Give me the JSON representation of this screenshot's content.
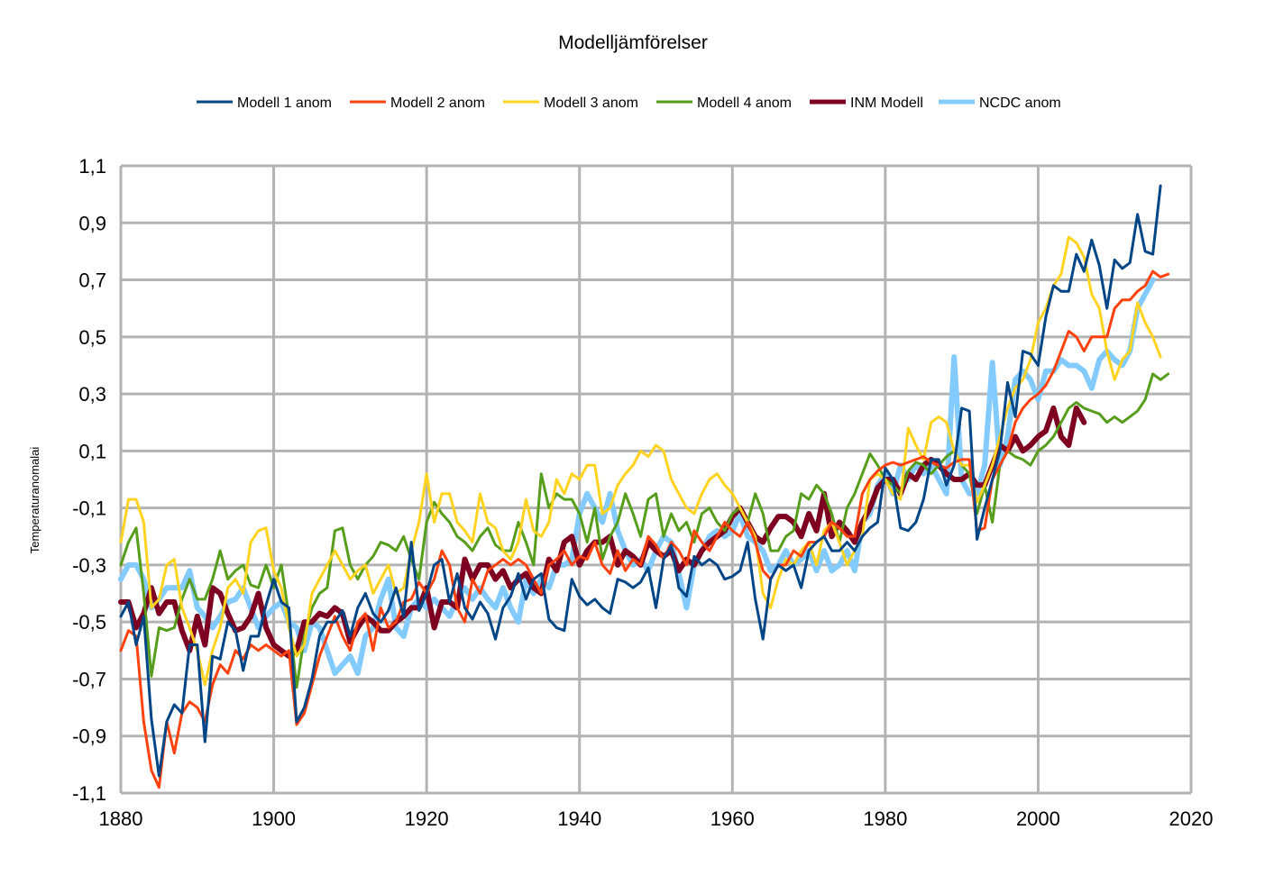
{
  "chart_data": {
    "type": "line",
    "title": "Modelljämförelser",
    "xlabel": "",
    "ylabel": "Temperaturanomalai",
    "xlim": [
      1880,
      2020
    ],
    "ylim": [
      -1.1,
      1.1
    ],
    "x_ticks": [
      1880,
      1900,
      1920,
      1940,
      1960,
      1980,
      2000,
      2020
    ],
    "y_ticks": [
      1.1,
      0.9,
      0.7,
      0.5,
      0.3,
      0.1,
      -0.1,
      -0.3,
      -0.5,
      -0.7,
      -0.9,
      -1.1
    ],
    "x_tick_labels": [
      "1880",
      "1900",
      "1920",
      "1940",
      "1960",
      "1980",
      "2000",
      "2020"
    ],
    "y_tick_labels": [
      "1,1",
      "0,9",
      "0,7",
      "0,5",
      "0,3",
      "0,1",
      "-0,1",
      "-0,3",
      "-0,5",
      "-0,7",
      "-0,9",
      "-1,1"
    ],
    "grid": true,
    "legend_position": "top",
    "series": [
      {
        "name": "Modell 1 anom",
        "color": "#004586",
        "width": 3,
        "x_start": 1880,
        "values": [
          -0.48,
          -0.43,
          -0.58,
          -0.48,
          -0.84,
          -1.04,
          -0.85,
          -0.79,
          -0.82,
          -0.58,
          -0.58,
          -0.92,
          -0.62,
          -0.63,
          -0.5,
          -0.53,
          -0.67,
          -0.55,
          -0.55,
          -0.44,
          -0.35,
          -0.43,
          -0.45,
          -0.85,
          -0.8,
          -0.7,
          -0.55,
          -0.5,
          -0.5,
          -0.46,
          -0.55,
          -0.45,
          -0.4,
          -0.47,
          -0.5,
          -0.46,
          -0.38,
          -0.48,
          -0.22,
          -0.46,
          -0.4,
          -0.3,
          -0.28,
          -0.43,
          -0.33,
          -0.45,
          -0.49,
          -0.43,
          -0.47,
          -0.56,
          -0.45,
          -0.41,
          -0.33,
          -0.42,
          -0.35,
          -0.33,
          -0.49,
          -0.52,
          -0.53,
          -0.35,
          -0.41,
          -0.44,
          -0.42,
          -0.45,
          -0.47,
          -0.35,
          -0.36,
          -0.38,
          -0.36,
          -0.31,
          -0.45,
          -0.28,
          -0.23,
          -0.38,
          -0.41,
          -0.27,
          -0.3,
          -0.28,
          -0.3,
          -0.35,
          -0.34,
          -0.32,
          -0.22,
          -0.42,
          -0.56,
          -0.35,
          -0.3,
          -0.32,
          -0.3,
          -0.38,
          -0.25,
          -0.22,
          -0.2,
          -0.25,
          -0.25,
          -0.22,
          -0.25,
          -0.2,
          -0.17,
          -0.15,
          0.04,
          0.0,
          -0.17,
          -0.18,
          -0.15,
          -0.07,
          0.07,
          0.07,
          -0.02,
          0.05,
          0.25,
          0.24,
          -0.21,
          -0.1,
          0.0,
          0.1,
          0.34,
          0.22,
          0.45,
          0.44,
          0.4,
          0.57,
          0.68,
          0.66,
          0.66,
          0.79,
          0.73,
          0.84,
          0.75,
          0.6,
          0.77,
          0.74,
          0.76,
          0.93,
          0.8,
          0.79,
          1.03
        ]
      },
      {
        "name": "Modell 2 anom",
        "color": "#ff420e",
        "width": 3,
        "x_start": 1880,
        "values": [
          -0.6,
          -0.53,
          -0.55,
          -0.85,
          -1.02,
          -1.08,
          -0.85,
          -0.96,
          -0.82,
          -0.78,
          -0.8,
          -0.85,
          -0.72,
          -0.65,
          -0.68,
          -0.6,
          -0.63,
          -0.58,
          -0.6,
          -0.58,
          -0.6,
          -0.62,
          -0.6,
          -0.86,
          -0.82,
          -0.72,
          -0.62,
          -0.55,
          -0.48,
          -0.55,
          -0.6,
          -0.5,
          -0.47,
          -0.6,
          -0.45,
          -0.52,
          -0.5,
          -0.43,
          -0.42,
          -0.36,
          -0.4,
          -0.35,
          -0.25,
          -0.3,
          -0.45,
          -0.5,
          -0.35,
          -0.4,
          -0.32,
          -0.3,
          -0.28,
          -0.3,
          -0.28,
          -0.3,
          -0.35,
          -0.4,
          -0.3,
          -0.28,
          -0.25,
          -0.3,
          -0.27,
          -0.28,
          -0.22,
          -0.3,
          -0.33,
          -0.25,
          -0.32,
          -0.28,
          -0.3,
          -0.2,
          -0.23,
          -0.28,
          -0.22,
          -0.25,
          -0.3,
          -0.18,
          -0.22,
          -0.25,
          -0.2,
          -0.15,
          -0.18,
          -0.2,
          -0.15,
          -0.22,
          -0.32,
          -0.35,
          -0.3,
          -0.3,
          -0.25,
          -0.27,
          -0.22,
          -0.22,
          -0.2,
          -0.15,
          -0.17,
          -0.2,
          -0.2,
          -0.05,
          0.0,
          0.03,
          0.05,
          0.06,
          0.05,
          0.06,
          0.07,
          0.08,
          0.06,
          0.05,
          0.04,
          0.06,
          0.07,
          0.07,
          -0.18,
          -0.17,
          0.0,
          0.05,
          0.1,
          0.2,
          0.25,
          0.28,
          0.3,
          0.33,
          0.38,
          0.45,
          0.52,
          0.5,
          0.45,
          0.5,
          0.5,
          0.5,
          0.6,
          0.63,
          0.63,
          0.66,
          0.68,
          0.73,
          0.71,
          0.72
        ]
      },
      {
        "name": "Modell 3 anom",
        "color": "#ffd320",
        "width": 3,
        "x_start": 1880,
        "values": [
          -0.22,
          -0.07,
          -0.07,
          -0.15,
          -0.45,
          -0.42,
          -0.3,
          -0.28,
          -0.45,
          -0.52,
          -0.6,
          -0.72,
          -0.6,
          -0.52,
          -0.38,
          -0.35,
          -0.4,
          -0.22,
          -0.18,
          -0.17,
          -0.32,
          -0.38,
          -0.52,
          -0.62,
          -0.58,
          -0.4,
          -0.35,
          -0.3,
          -0.25,
          -0.3,
          -0.35,
          -0.32,
          -0.3,
          -0.4,
          -0.35,
          -0.3,
          -0.4,
          -0.38,
          -0.25,
          -0.15,
          0.02,
          -0.15,
          -0.05,
          -0.05,
          -0.15,
          -0.18,
          -0.22,
          -0.05,
          -0.15,
          -0.17,
          -0.25,
          -0.28,
          -0.22,
          -0.07,
          -0.18,
          -0.2,
          -0.15,
          0.0,
          -0.05,
          0.02,
          0.0,
          0.05,
          0.05,
          -0.12,
          -0.1,
          -0.02,
          0.02,
          0.05,
          0.1,
          0.08,
          0.12,
          0.1,
          0.0,
          -0.05,
          -0.1,
          -0.12,
          -0.05,
          0.0,
          0.02,
          -0.02,
          -0.05,
          -0.1,
          -0.15,
          -0.2,
          -0.4,
          -0.45,
          -0.35,
          -0.28,
          -0.3,
          -0.25,
          -0.22,
          -0.3,
          -0.18,
          -0.15,
          -0.22,
          -0.3,
          -0.25,
          -0.2,
          0.0,
          0.02,
          0.0,
          -0.05,
          -0.07,
          0.18,
          0.12,
          0.07,
          0.2,
          0.22,
          0.2,
          0.1,
          0.05,
          0.05,
          -0.08,
          -0.02,
          0.05,
          0.15,
          0.25,
          0.32,
          0.35,
          0.42,
          0.55,
          0.6,
          0.68,
          0.72,
          0.85,
          0.83,
          0.78,
          0.65,
          0.6,
          0.45,
          0.35,
          0.42,
          0.45,
          0.62,
          0.55,
          0.5,
          0.43
        ]
      },
      {
        "name": "Modell 4 anom",
        "color": "#579d1c",
        "width": 3,
        "x_start": 1880,
        "values": [
          -0.3,
          -0.22,
          -0.17,
          -0.4,
          -0.69,
          -0.52,
          -0.53,
          -0.52,
          -0.42,
          -0.35,
          -0.42,
          -0.42,
          -0.35,
          -0.25,
          -0.35,
          -0.32,
          -0.3,
          -0.37,
          -0.38,
          -0.3,
          -0.38,
          -0.3,
          -0.48,
          -0.73,
          -0.55,
          -0.45,
          -0.4,
          -0.38,
          -0.18,
          -0.17,
          -0.3,
          -0.35,
          -0.3,
          -0.27,
          -0.22,
          -0.23,
          -0.25,
          -0.2,
          -0.28,
          -0.35,
          -0.15,
          -0.08,
          -0.12,
          -0.15,
          -0.2,
          -0.22,
          -0.25,
          -0.2,
          -0.17,
          -0.23,
          -0.25,
          -0.25,
          -0.15,
          -0.22,
          -0.3,
          0.02,
          -0.1,
          -0.05,
          -0.07,
          -0.07,
          -0.12,
          -0.22,
          -0.1,
          -0.28,
          -0.2,
          -0.15,
          -0.05,
          -0.12,
          -0.2,
          -0.07,
          -0.05,
          -0.2,
          -0.12,
          -0.18,
          -0.15,
          -0.22,
          -0.12,
          -0.1,
          -0.15,
          -0.18,
          -0.12,
          -0.1,
          -0.15,
          -0.05,
          -0.12,
          -0.25,
          -0.25,
          -0.2,
          -0.18,
          -0.05,
          -0.07,
          -0.02,
          -0.05,
          -0.12,
          -0.22,
          -0.1,
          -0.05,
          0.02,
          0.09,
          0.05,
          0.0,
          -0.02,
          -0.05,
          0.03,
          0.06,
          0.05,
          0.02,
          0.05,
          0.08,
          0.1,
          0.05,
          0.02,
          -0.12,
          -0.02,
          -0.15,
          0.05,
          0.1,
          0.08,
          0.07,
          0.05,
          0.1,
          0.12,
          0.15,
          0.2,
          0.25,
          0.27,
          0.25,
          0.24,
          0.23,
          0.2,
          0.22,
          0.2,
          0.22,
          0.24,
          0.28,
          0.37,
          0.35,
          0.37
        ]
      },
      {
        "name": "INM Modell",
        "color": "#7e0021",
        "width": 6,
        "x_start": 1880,
        "values": [
          -0.43,
          -0.43,
          -0.52,
          -0.47,
          -0.38,
          -0.47,
          -0.43,
          -0.43,
          -0.53,
          -0.6,
          -0.48,
          -0.58,
          -0.38,
          -0.4,
          -0.47,
          -0.53,
          -0.52,
          -0.48,
          -0.4,
          -0.52,
          -0.58,
          -0.6,
          -0.62,
          -0.6,
          -0.5,
          -0.5,
          -0.47,
          -0.48,
          -0.45,
          -0.47,
          -0.57,
          -0.52,
          -0.48,
          -0.5,
          -0.53,
          -0.53,
          -0.5,
          -0.48,
          -0.45,
          -0.45,
          -0.38,
          -0.52,
          -0.43,
          -0.43,
          -0.45,
          -0.28,
          -0.35,
          -0.3,
          -0.3,
          -0.35,
          -0.32,
          -0.38,
          -0.35,
          -0.33,
          -0.38,
          -0.4,
          -0.28,
          -0.32,
          -0.22,
          -0.2,
          -0.3,
          -0.25,
          -0.22,
          -0.22,
          -0.2,
          -0.3,
          -0.25,
          -0.27,
          -0.3,
          -0.22,
          -0.25,
          -0.27,
          -0.25,
          -0.32,
          -0.28,
          -0.3,
          -0.25,
          -0.22,
          -0.2,
          -0.18,
          -0.13,
          -0.1,
          -0.15,
          -0.2,
          -0.22,
          -0.17,
          -0.13,
          -0.13,
          -0.15,
          -0.2,
          -0.12,
          -0.18,
          -0.05,
          -0.2,
          -0.15,
          -0.18,
          -0.22,
          -0.15,
          -0.1,
          -0.03,
          0.0,
          0.0,
          -0.05,
          0.02,
          0.0,
          0.05,
          0.07,
          0.05,
          0.02,
          0.0,
          0.0,
          0.02,
          -0.02,
          -0.02,
          0.05,
          0.12,
          0.1,
          0.15,
          0.1,
          0.12,
          0.15,
          0.17,
          0.25,
          0.15,
          0.12,
          0.25,
          0.2
        ]
      },
      {
        "name": "NCDC anom",
        "color": "#83caff",
        "width": 6,
        "x_start": 1880,
        "values": [
          -0.35,
          -0.3,
          -0.3,
          -0.35,
          -0.45,
          -0.42,
          -0.38,
          -0.38,
          -0.38,
          -0.32,
          -0.45,
          -0.48,
          -0.52,
          -0.48,
          -0.43,
          -0.42,
          -0.38,
          -0.45,
          -0.52,
          -0.48,
          -0.45,
          -0.43,
          -0.5,
          -0.52,
          -0.6,
          -0.5,
          -0.52,
          -0.6,
          -0.68,
          -0.65,
          -0.62,
          -0.68,
          -0.55,
          -0.52,
          -0.42,
          -0.35,
          -0.52,
          -0.55,
          -0.45,
          -0.42,
          -0.45,
          -0.42,
          -0.45,
          -0.48,
          -0.42,
          -0.38,
          -0.42,
          -0.38,
          -0.42,
          -0.45,
          -0.38,
          -0.45,
          -0.5,
          -0.35,
          -0.4,
          -0.35,
          -0.38,
          -0.3,
          -0.3,
          -0.28,
          -0.12,
          -0.05,
          -0.1,
          -0.15,
          -0.05,
          -0.18,
          -0.25,
          -0.3,
          -0.28,
          -0.32,
          -0.25,
          -0.2,
          -0.22,
          -0.33,
          -0.45,
          -0.3,
          -0.25,
          -0.2,
          -0.18,
          -0.2,
          -0.18,
          -0.12,
          -0.2,
          -0.22,
          -0.25,
          -0.32,
          -0.3,
          -0.25,
          -0.3,
          -0.28,
          -0.25,
          -0.32,
          -0.25,
          -0.32,
          -0.3,
          -0.25,
          -0.32,
          -0.15,
          -0.12,
          -0.02,
          0.02,
          -0.05,
          0.05,
          0.0,
          0.05,
          0.02,
          0.05,
          0.0,
          -0.05,
          0.43,
          0.0,
          -0.05,
          -0.05,
          0.05,
          0.41,
          0.05,
          0.15,
          0.35,
          0.38,
          0.35,
          0.28,
          0.38,
          0.38,
          0.42,
          0.4,
          0.4,
          0.38,
          0.32,
          0.42,
          0.45,
          0.42,
          0.4,
          0.45,
          0.6,
          0.65,
          0.7
        ]
      }
    ]
  }
}
